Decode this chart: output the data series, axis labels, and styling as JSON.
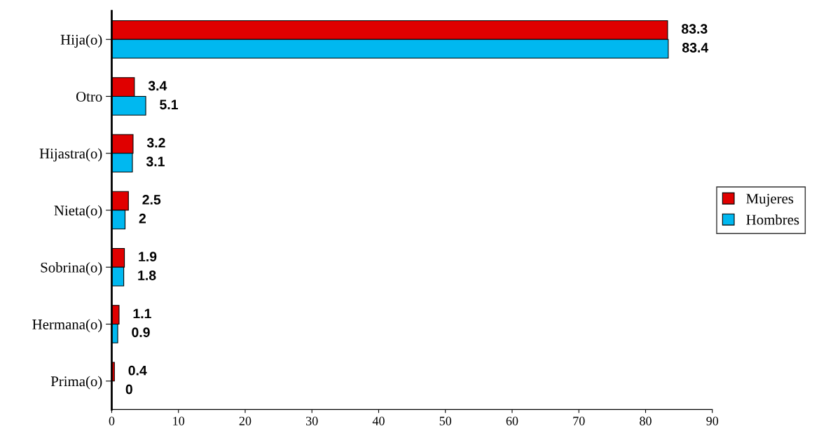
{
  "chart_data": {
    "type": "bar",
    "orientation": "horizontal",
    "categories": [
      "Hija(o)",
      "Otro",
      "Hijastra(o)",
      "Nieta(o)",
      "Sobrina(o)",
      "Hermana(o)",
      "Prima(o)"
    ],
    "series": [
      {
        "name": "Mujeres",
        "color": "#e00000",
        "values": [
          83.3,
          3.4,
          3.2,
          2.5,
          1.9,
          1.1,
          0.4
        ]
      },
      {
        "name": "Hombres",
        "color": "#00b8f0",
        "values": [
          83.4,
          5.1,
          3.1,
          2,
          1.8,
          0.9,
          0
        ]
      }
    ],
    "xlim": [
      0,
      90
    ],
    "xticks": [
      0,
      10,
      20,
      30,
      40,
      50,
      60,
      70,
      80,
      90
    ],
    "data_labels": true,
    "grid": false,
    "legend": "right"
  }
}
